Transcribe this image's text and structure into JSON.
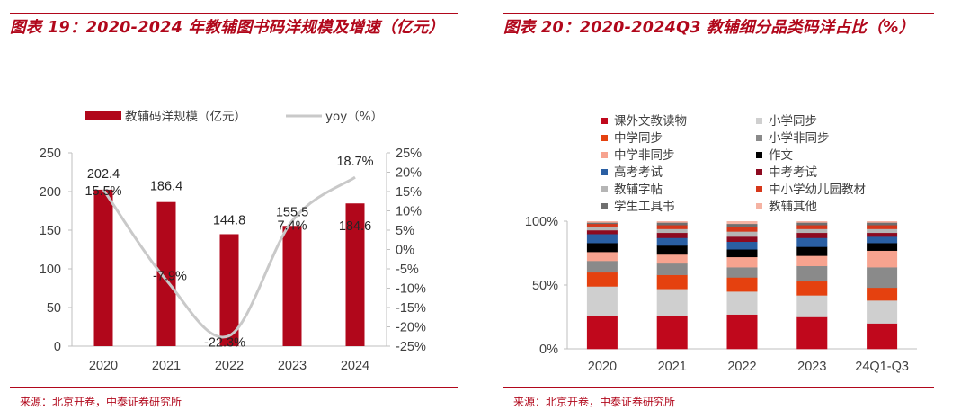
{
  "left": {
    "title": "图表 19：2020-2024 年教辅图书码洋规模及增速（亿元）",
    "source": "来源：北京开卷，中泰证券研究所",
    "chart_data": {
      "type": "bar+line",
      "categories": [
        "2020",
        "2021",
        "2022",
        "2023",
        "2024"
      ],
      "series": [
        {
          "name": "教辅码洋规模（亿元）",
          "type": "bar",
          "axis": "left",
          "color": "#b1071b",
          "values": [
            202.4,
            186.4,
            144.8,
            155.5,
            184.6
          ],
          "labels": [
            "202.4",
            "186.4",
            "144.8",
            "155.5",
            "184.6"
          ]
        },
        {
          "name": "yoy（%）",
          "type": "line",
          "axis": "right",
          "color": "#c9c9c9",
          "values": [
            15.5,
            -7.9,
            -22.3,
            7.4,
            18.7
          ],
          "labels": [
            "15.5%",
            "-7.9%",
            "-22.3%",
            "7.4%",
            "18.7%"
          ]
        }
      ],
      "ylim_left": [
        0,
        250
      ],
      "yticks_left": [
        "0",
        "50",
        "100",
        "150",
        "200",
        "250"
      ],
      "ylim_right": [
        -25,
        25
      ],
      "yticks_right": [
        "-25%",
        "-20%",
        "-15%",
        "-10%",
        "-5%",
        "0%",
        "5%",
        "10%",
        "15%",
        "20%",
        "25%"
      ],
      "legend": [
        "教辅码洋规模（亿元）",
        "yoy（%）"
      ],
      "legend_position": "top"
    }
  },
  "right": {
    "title": "图表 20：2020-2024Q3 教辅细分品类码洋占比（%）",
    "source": "来源：北京开卷，中泰证券研究所",
    "chart_data": {
      "type": "stacked-bar-100",
      "categories": [
        "2020",
        "2021",
        "2022",
        "2023",
        "24Q1-Q3"
      ],
      "yticks": [
        "0%",
        "50%",
        "100%"
      ],
      "ylim": [
        0,
        100
      ],
      "legend_position": "top",
      "series": [
        {
          "name": "课外文教读物",
          "color": "#c0081c",
          "values": [
            26,
            26,
            27,
            25,
            20
          ]
        },
        {
          "name": "小学同步",
          "color": "#cfcfcf",
          "values": [
            23,
            21,
            18,
            17,
            18
          ]
        },
        {
          "name": "中学同步",
          "color": "#e5410f",
          "values": [
            11,
            11,
            11,
            11,
            10
          ]
        },
        {
          "name": "小学非同步",
          "color": "#8a8a8a",
          "values": [
            9,
            9,
            8,
            12,
            16
          ]
        },
        {
          "name": "中学非同步",
          "color": "#f7a38f",
          "values": [
            7,
            7,
            8,
            8,
            13
          ]
        },
        {
          "name": "作文",
          "color": "#000000",
          "values": [
            7,
            7,
            6,
            7,
            6
          ]
        },
        {
          "name": "高考考试",
          "color": "#2a5fa3",
          "values": [
            7,
            6,
            6,
            7,
            5
          ]
        },
        {
          "name": "中考考试",
          "color": "#8d0a20",
          "values": [
            3,
            4,
            4,
            4,
            3
          ]
        },
        {
          "name": "教辅字帖",
          "color": "#b5b5b5",
          "values": [
            3,
            3,
            4,
            3,
            3
          ]
        },
        {
          "name": "中小学幼儿园教材",
          "color": "#d6371a",
          "values": [
            2,
            3,
            4,
            3,
            3
          ]
        },
        {
          "name": "学生工具书",
          "color": "#6f6f6f",
          "values": [
            1,
            2,
            2,
            2,
            2
          ]
        },
        {
          "name": "教辅其他",
          "color": "#f5b3a3",
          "values": [
            1,
            1,
            2,
            1,
            1
          ]
        }
      ]
    }
  }
}
